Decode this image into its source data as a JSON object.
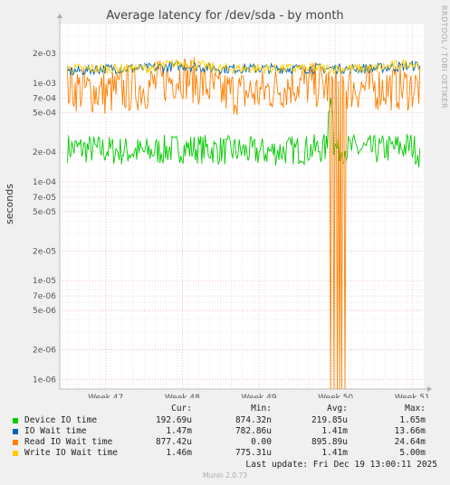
{
  "header": {
    "title": "Average latency for /dev/sda - by month",
    "side_label": "RRDTOOL / TOBI OETIKER"
  },
  "chart_data": {
    "type": "line",
    "title": "Average latency for /dev/sda - by month",
    "xlabel": "",
    "ylabel": "seconds",
    "y_scale": "log",
    "ylim": [
      8e-07,
      0.004
    ],
    "x_tick_labels": [
      "Week 47",
      "Week 48",
      "Week 49",
      "Week 50",
      "Week 51"
    ],
    "y_tick_labels": [
      {
        "label": "2e-03",
        "value": 0.002
      },
      {
        "label": "1e-03",
        "value": 0.001
      },
      {
        "label": "7e-04",
        "value": 0.0007
      },
      {
        "label": "5e-04",
        "value": 0.0005
      },
      {
        "label": "2e-04",
        "value": 0.0002
      },
      {
        "label": "1e-04",
        "value": 0.0001
      },
      {
        "label": "7e-05",
        "value": 7e-05
      },
      {
        "label": "5e-05",
        "value": 5e-05
      },
      {
        "label": "2e-05",
        "value": 2e-05
      },
      {
        "label": "1e-05",
        "value": 1e-05
      },
      {
        "label": "7e-06",
        "value": 7e-06
      },
      {
        "label": "5e-06",
        "value": 5e-06
      },
      {
        "label": "2e-06",
        "value": 2e-06
      },
      {
        "label": "1e-06",
        "value": 1e-06
      }
    ],
    "grid": true,
    "x": [
      "Week 46.5",
      "Week 47",
      "Week 47.5",
      "Week 48",
      "Week 48.5",
      "Week 49",
      "Week 49.5",
      "Week 50",
      "Week 50.5",
      "Week 51",
      "Week 51.1"
    ],
    "series": [
      {
        "name": "Device IO time",
        "color": "#00cc00",
        "values": [
          0.00022,
          0.00021,
          0.0002,
          0.00022,
          0.00021,
          0.0002,
          0.00021,
          0.00022,
          0.00021,
          0.00023,
          0.00019
        ]
      },
      {
        "name": "IO Wait time",
        "color": "#0066b3",
        "values": [
          0.0013,
          0.0014,
          0.0014,
          0.0015,
          0.0014,
          0.0014,
          0.0014,
          0.0014,
          0.0014,
          0.0015,
          0.0015
        ]
      },
      {
        "name": "Read IO Wait time",
        "color": "#ff8000",
        "values": [
          0.0009,
          0.0008,
          0.0009,
          0.0012,
          0.0008,
          0.0008,
          0.001,
          0.0009,
          0.0009,
          0.0009,
          0.0009
        ]
      },
      {
        "name": "Write IO Wait time",
        "color": "#ffcc00",
        "values": [
          0.0014,
          0.0014,
          0.0014,
          0.0016,
          0.0014,
          0.0014,
          0.0014,
          0.0014,
          0.0014,
          0.0016,
          0.0015
        ]
      }
    ],
    "legend_placement": "bottom"
  },
  "legend": {
    "headers": [
      "Cur:",
      "Min:",
      "Avg:",
      "Max:"
    ],
    "rows": [
      {
        "name": "Device IO time",
        "color": "#00cc00",
        "cur": "192.69u",
        "min": "874.32n",
        "avg": "219.85u",
        "max": "1.65m"
      },
      {
        "name": "IO Wait time",
        "color": "#0066b3",
        "cur": "1.47m",
        "min": "782.86u",
        "avg": "1.41m",
        "max": "13.66m"
      },
      {
        "name": "Read IO Wait time",
        "color": "#ff8000",
        "cur": "877.42u",
        "min": "0.00",
        "avg": "895.89u",
        "max": "24.64m"
      },
      {
        "name": "Write IO Wait time",
        "color": "#ffcc00",
        "cur": "1.46m",
        "min": "775.31u",
        "avg": "1.41m",
        "max": "5.00m"
      }
    ]
  },
  "last_update": "Last update: Fri Dec 19 13:00:11 2025",
  "footer": "Munin 2.0.73"
}
